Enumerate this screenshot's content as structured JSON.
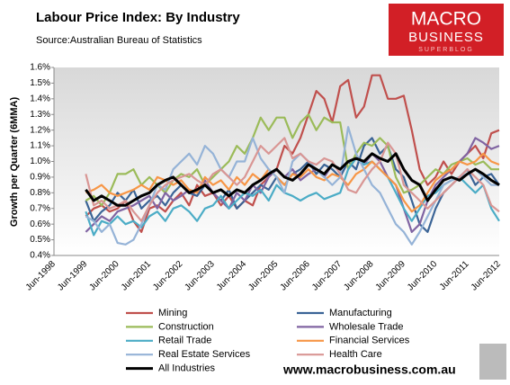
{
  "logo": {
    "line1": "MACRO",
    "line2": "BUSINESS",
    "line3": "SUPERBLOG"
  },
  "footer": "www.macrobusiness.com.au",
  "chart_data": {
    "type": "line",
    "title": "Labour Price Index: By Industry",
    "subtitle": "Source:Australian Bureau of Statistics",
    "y_label": "Growth per Quarter (6MMA)",
    "ylim": [
      0.4,
      1.6
    ],
    "yticks": [
      {
        "value": 0.4,
        "label": "0.4%"
      },
      {
        "value": 0.5,
        "label": "0.5%"
      },
      {
        "value": 0.6,
        "label": "0.6%"
      },
      {
        "value": 0.7,
        "label": "0.7%"
      },
      {
        "value": 0.8,
        "label": "0.8%"
      },
      {
        "value": 0.9,
        "label": "0.9%"
      },
      {
        "value": 1.0,
        "label": "1.0%"
      },
      {
        "value": 1.1,
        "label": "1.1%"
      },
      {
        "value": 1.2,
        "label": "1.2%"
      },
      {
        "value": 1.3,
        "label": "1.3%"
      },
      {
        "value": 1.4,
        "label": "1.4%"
      },
      {
        "value": 1.5,
        "label": "1.5%"
      },
      {
        "value": 1.6,
        "label": "1.6%"
      }
    ],
    "categories": [
      "Jun-1998",
      null,
      null,
      null,
      "Jun-1999",
      null,
      null,
      null,
      "Jun-2000",
      null,
      null,
      null,
      "Jun-2001",
      null,
      null,
      null,
      "Jun-2002",
      null,
      null,
      null,
      "Jun-2003",
      null,
      null,
      null,
      "Jun-2004",
      null,
      null,
      null,
      "Jun-2005",
      null,
      null,
      null,
      "Jun-2006",
      null,
      null,
      null,
      "Jun-2007",
      null,
      null,
      null,
      "Jun-2008",
      null,
      null,
      null,
      "Jun-2009",
      null,
      null,
      null,
      "Jun-2010",
      null,
      null,
      null,
      "Jun-2011",
      null,
      null,
      null,
      "Jun-2012"
    ],
    "series": [
      {
        "name": "Mining",
        "color": "#c0504d",
        "width": 2.2,
        "values": [
          null,
          null,
          null,
          null,
          0.65,
          0.7,
          0.72,
          0.68,
          0.7,
          0.75,
          0.62,
          0.55,
          0.7,
          0.72,
          0.68,
          0.75,
          0.8,
          0.72,
          0.85,
          0.78,
          0.8,
          0.72,
          0.78,
          0.7,
          0.75,
          0.72,
          0.85,
          0.9,
          0.95,
          1.1,
          1.05,
          1.15,
          1.3,
          1.45,
          1.4,
          1.25,
          1.48,
          1.52,
          1.28,
          1.35,
          1.55,
          1.55,
          1.4,
          1.4,
          1.42,
          1.2,
          0.95,
          0.85,
          0.9,
          1.0,
          0.92,
          1.0,
          1.05,
          1.1,
          1.02,
          1.18,
          1.2
        ]
      },
      {
        "name": "Manufacturing",
        "color": "#3b6496",
        "width": 2.2,
        "values": [
          null,
          null,
          null,
          null,
          0.75,
          0.62,
          0.68,
          0.72,
          0.8,
          0.75,
          0.82,
          0.7,
          0.75,
          0.78,
          0.72,
          0.8,
          0.85,
          0.8,
          0.78,
          0.85,
          0.8,
          0.75,
          0.82,
          0.7,
          0.75,
          0.8,
          0.85,
          0.82,
          0.9,
          0.85,
          0.92,
          0.95,
          1.0,
          0.92,
          0.98,
          0.95,
          0.9,
          1.0,
          0.95,
          1.1,
          1.15,
          1.05,
          1.1,
          0.95,
          0.9,
          0.75,
          0.6,
          0.55,
          0.7,
          0.8,
          0.85,
          0.9,
          0.95,
          0.85,
          0.9,
          0.92,
          0.85
        ]
      },
      {
        "name": "Construction",
        "color": "#9bbb59",
        "width": 2.2,
        "values": [
          null,
          null,
          null,
          null,
          0.75,
          0.78,
          0.72,
          0.8,
          0.92,
          0.92,
          0.95,
          0.85,
          0.9,
          0.85,
          0.8,
          0.88,
          0.92,
          0.9,
          0.95,
          0.85,
          0.9,
          0.95,
          1.0,
          1.1,
          1.05,
          1.15,
          1.28,
          1.2,
          1.28,
          1.28,
          1.15,
          1.25,
          1.3,
          1.2,
          1.28,
          1.25,
          1.25,
          0.95,
          1.05,
          1.12,
          1.1,
          1.15,
          1.1,
          0.9,
          0.8,
          0.82,
          0.85,
          0.9,
          0.95,
          0.92,
          0.98,
          1.0,
          1.02,
          0.98,
          1.0,
          0.95,
          0.95
        ]
      },
      {
        "name": "Wholesale Trade",
        "color": "#8064a2",
        "width": 2.2,
        "values": [
          null,
          null,
          null,
          null,
          0.55,
          0.6,
          0.65,
          0.62,
          0.68,
          0.7,
          0.72,
          0.75,
          0.78,
          0.7,
          0.8,
          0.75,
          0.78,
          0.82,
          0.8,
          0.88,
          0.8,
          0.75,
          0.7,
          0.8,
          0.75,
          0.85,
          0.8,
          0.9,
          0.95,
          0.9,
          0.95,
          0.88,
          0.92,
          0.95,
          0.9,
          0.98,
          0.95,
          1.0,
          1.02,
          0.98,
          1.05,
          1.0,
          0.9,
          0.85,
          0.7,
          0.55,
          0.6,
          0.75,
          0.85,
          0.9,
          0.95,
          1.0,
          1.05,
          1.15,
          1.12,
          1.08,
          1.1
        ]
      },
      {
        "name": "Retail Trade",
        "color": "#4bacc6",
        "width": 2.2,
        "values": [
          null,
          null,
          null,
          null,
          0.68,
          0.53,
          0.62,
          0.6,
          0.65,
          0.6,
          0.62,
          0.58,
          0.65,
          0.68,
          0.62,
          0.7,
          0.72,
          0.68,
          0.62,
          0.7,
          0.72,
          0.78,
          0.7,
          0.75,
          0.8,
          0.78,
          0.82,
          0.75,
          0.85,
          0.8,
          0.78,
          0.75,
          0.78,
          0.8,
          0.76,
          0.78,
          0.8,
          0.95,
          1.02,
          0.98,
          1.0,
          0.95,
          0.9,
          0.8,
          0.7,
          0.62,
          0.7,
          0.78,
          0.8,
          0.85,
          0.88,
          0.9,
          0.85,
          0.8,
          0.85,
          0.7,
          0.62
        ]
      },
      {
        "name": "Financial Services",
        "color": "#f79646",
        "width": 2.2,
        "values": [
          null,
          null,
          null,
          null,
          0.8,
          0.82,
          0.85,
          0.8,
          0.78,
          0.8,
          0.82,
          0.85,
          0.82,
          0.9,
          0.88,
          0.85,
          0.88,
          0.82,
          0.8,
          0.9,
          0.85,
          0.88,
          0.82,
          0.9,
          0.85,
          0.92,
          0.88,
          0.95,
          0.9,
          0.85,
          0.92,
          0.9,
          0.95,
          0.9,
          0.88,
          0.92,
          0.9,
          0.85,
          0.92,
          0.95,
          1.0,
          0.95,
          0.9,
          0.85,
          0.75,
          0.68,
          0.72,
          0.8,
          0.88,
          0.92,
          0.95,
          1.0,
          0.98,
          1.0,
          1.05,
          1.0,
          0.98
        ]
      },
      {
        "name": "Real Estate Services",
        "color": "#95b3d7",
        "width": 2.2,
        "values": [
          null,
          null,
          null,
          null,
          0.65,
          0.62,
          0.55,
          0.6,
          0.48,
          0.47,
          0.5,
          0.6,
          0.72,
          0.85,
          0.82,
          0.95,
          1.0,
          1.05,
          0.98,
          1.1,
          1.05,
          0.95,
          0.9,
          1.0,
          1.0,
          1.15,
          1.02,
          0.95,
          0.9,
          0.8,
          1.0,
          1.05,
          1.0,
          0.95,
          0.9,
          0.85,
          0.9,
          1.22,
          1.05,
          0.95,
          0.85,
          0.8,
          0.7,
          0.6,
          0.55,
          0.47,
          0.55,
          0.65,
          0.75,
          0.85,
          0.88,
          0.9,
          0.92,
          0.95,
          0.9,
          0.85,
          0.85
        ]
      },
      {
        "name": "Health Care",
        "color": "#d99694",
        "width": 2.2,
        "values": [
          null,
          null,
          null,
          null,
          0.92,
          0.72,
          0.75,
          0.7,
          0.72,
          0.75,
          0.68,
          0.62,
          0.72,
          0.8,
          0.85,
          0.88,
          0.9,
          0.92,
          0.88,
          0.85,
          0.92,
          0.95,
          0.9,
          0.85,
          0.9,
          1.0,
          1.1,
          1.05,
          1.1,
          1.15,
          1.02,
          1.05,
          1.0,
          0.98,
          1.02,
          1.0,
          0.92,
          0.82,
          0.8,
          0.88,
          0.95,
          1.0,
          1.12,
          1.05,
          0.85,
          0.8,
          0.75,
          0.7,
          0.75,
          0.8,
          0.85,
          0.9,
          0.95,
          0.9,
          0.85,
          0.72,
          0.68
        ]
      },
      {
        "name": "All Industries",
        "color": "#000000",
        "width": 3,
        "values": [
          null,
          null,
          null,
          null,
          0.82,
          0.75,
          0.78,
          0.75,
          0.72,
          0.72,
          0.75,
          0.78,
          0.8,
          0.85,
          0.88,
          0.9,
          0.85,
          0.8,
          0.82,
          0.85,
          0.8,
          0.82,
          0.78,
          0.82,
          0.8,
          0.85,
          0.88,
          0.92,
          0.95,
          0.9,
          0.88,
          0.92,
          0.98,
          0.95,
          0.92,
          0.98,
          0.95,
          1.0,
          1.02,
          1.0,
          1.05,
          1.02,
          1.0,
          1.05,
          0.95,
          0.88,
          0.85,
          0.75,
          0.82,
          0.88,
          0.9,
          0.88,
          0.92,
          0.95,
          0.92,
          0.88,
          0.85
        ]
      }
    ]
  }
}
